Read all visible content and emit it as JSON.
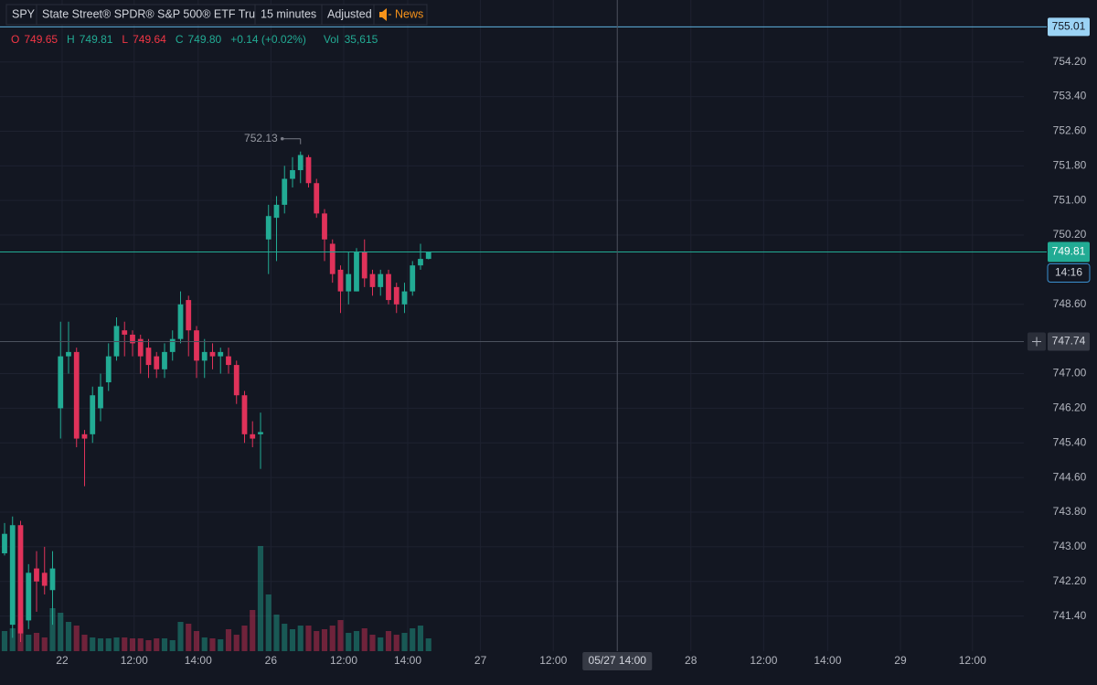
{
  "chart_data": {
    "type": "candlestick",
    "symbol": "SPY",
    "name": "State Street® SPDR® S&P 500® ETF Trust",
    "interval": "15 minutes",
    "adjustment": "Adjusted",
    "news": "News",
    "legend": [
      {
        "key": "O",
        "value": "749.65",
        "color": "#f23645"
      },
      {
        "key": "H",
        "value": "749.81",
        "color": "#22ab94"
      },
      {
        "key": "L",
        "value": "749.64",
        "color": "#f23645"
      },
      {
        "key": "C",
        "value": "749.80",
        "color": "#22ab94"
      },
      {
        "key": "+0.14 (+0.02%)",
        "value": "",
        "color": "#22ab94"
      }
    ],
    "volume_label": {
      "key": "Vol",
      "value": "35,615",
      "color": "#22ab94"
    },
    "up_color": "#22ab94",
    "down_color": "#e0325a",
    "open": [
      742.85,
      741.2,
      743.5,
      741.3,
      742.5,
      742.4,
      742.0,
      746.2,
      747.4,
      747.5,
      745.6,
      745.6,
      746.2,
      746.8,
      747.4,
      748.0,
      747.9,
      747.8,
      747.6,
      747.4,
      747.1,
      747.5,
      747.8,
      748.7,
      748.0,
      747.3,
      747.5,
      747.4,
      747.4,
      747.2,
      746.5,
      745.6,
      745.6,
      750.1,
      750.6,
      750.9,
      751.5,
      751.7,
      752.0,
      751.4,
      750.7,
      750.0,
      749.4,
      748.9,
      748.9,
      749.8,
      749.3,
      749.0,
      749.3,
      749.0,
      748.6,
      748.9,
      749.5,
      749.65
    ],
    "high": [
      743.55,
      743.7,
      743.6,
      742.6,
      742.9,
      743.0,
      742.9,
      748.2,
      748.2,
      747.6,
      745.7,
      746.7,
      747.0,
      747.7,
      748.3,
      748.2,
      748.0,
      747.9,
      747.8,
      747.5,
      747.7,
      748.0,
      748.9,
      748.8,
      748.1,
      747.8,
      747.7,
      747.6,
      747.6,
      747.3,
      746.6,
      745.9,
      746.1,
      750.9,
      751.1,
      751.8,
      752.0,
      752.13,
      752.05,
      751.5,
      750.8,
      750.1,
      749.5,
      749.8,
      749.9,
      750.1,
      749.4,
      749.4,
      749.4,
      749.1,
      749.1,
      749.6,
      750.0,
      749.81
    ],
    "low": [
      742.8,
      740.9,
      740.8,
      741.1,
      741.5,
      741.9,
      741.2,
      745.5,
      747.0,
      745.3,
      744.4,
      745.4,
      745.9,
      746.6,
      747.3,
      747.4,
      747.4,
      747.0,
      746.9,
      746.9,
      746.9,
      747.3,
      747.7,
      747.4,
      746.9,
      746.9,
      747.1,
      747.0,
      747.0,
      746.3,
      745.4,
      745.3,
      744.8,
      749.3,
      749.6,
      750.7,
      751.3,
      751.4,
      751.3,
      750.6,
      749.6,
      749.1,
      748.4,
      748.6,
      748.9,
      749.0,
      748.8,
      748.8,
      748.6,
      748.4,
      748.4,
      748.8,
      749.4,
      749.64
    ],
    "close": [
      743.3,
      743.5,
      741.0,
      742.4,
      742.2,
      742.1,
      742.5,
      747.4,
      747.5,
      745.5,
      745.5,
      746.5,
      746.7,
      747.4,
      748.1,
      747.9,
      747.7,
      747.4,
      747.2,
      747.1,
      747.5,
      747.8,
      748.6,
      748.0,
      747.3,
      747.5,
      747.4,
      747.5,
      747.2,
      746.5,
      745.6,
      745.5,
      745.65,
      750.64,
      750.9,
      751.5,
      751.7,
      752.05,
      751.4,
      750.7,
      750.1,
      749.3,
      748.9,
      749.3,
      749.8,
      749.2,
      749.0,
      749.3,
      748.7,
      748.6,
      748.9,
      749.5,
      749.65,
      749.8
    ],
    "volume": [
      55900,
      63500,
      76200,
      45700,
      50800,
      38100,
      119400,
      106700,
      81300,
      71100,
      45700,
      38100,
      35600,
      35600,
      38100,
      38100,
      35600,
      35600,
      30500,
      35600,
      35600,
      30500,
      81300,
      76200,
      55900,
      38100,
      35600,
      33000,
      61000,
      45700,
      71100,
      114300,
      292100,
      157500,
      101600,
      76200,
      61000,
      71100,
      71100,
      55900,
      61000,
      71100,
      86400,
      50800,
      55900,
      63500,
      45700,
      38100,
      55900,
      45700,
      50800,
      63500,
      71100,
      35615
    ],
    "xlim": [
      -0.57,
      127.43
    ],
    "ylim": [
      740.59,
      755.63
    ],
    "xticks": [
      {
        "value": 7.2,
        "label": "22"
      },
      {
        "value": 16.2,
        "label": "12:00"
      },
      {
        "value": 24.2,
        "label": "14:00"
      },
      {
        "value": 33.3,
        "label": "26"
      },
      {
        "value": 42.4,
        "label": "12:00"
      },
      {
        "value": 50.4,
        "label": "14:00"
      },
      {
        "value": 59.5,
        "label": "27"
      },
      {
        "value": 68.6,
        "label": "12:00"
      },
      {
        "value": 85.8,
        "label": "28"
      },
      {
        "value": 94.9,
        "label": "12:00"
      },
      {
        "value": 102.9,
        "label": "14:00"
      },
      {
        "value": 112,
        "label": "29"
      },
      {
        "value": 121,
        "label": "12:00"
      }
    ],
    "yticks": [
      {
        "value": 741.4,
        "label": "741.40"
      },
      {
        "value": 742.2,
        "label": "742.20"
      },
      {
        "value": 743,
        "label": "743.00"
      },
      {
        "value": 743.8,
        "label": "743.80"
      },
      {
        "value": 744.6,
        "label": "744.60"
      },
      {
        "value": 745.4,
        "label": "745.40"
      },
      {
        "value": 746.2,
        "label": "746.20"
      },
      {
        "value": 747,
        "label": "747.00"
      },
      {
        "value": 748.6,
        "label": "748.60"
      },
      {
        "value": 750.2,
        "label": "750.20"
      },
      {
        "value": 751,
        "label": "751.00"
      },
      {
        "value": 751.8,
        "label": "751.80"
      },
      {
        "value": 752.6,
        "label": "752.60"
      },
      {
        "value": 753.4,
        "label": "753.40"
      },
      {
        "value": 754.2,
        "label": "754.20"
      }
    ],
    "grid": true,
    "alert_line": 755.01,
    "last_price": {
      "value": 749.81,
      "countdown": "14:16"
    },
    "crosshair": {
      "x": 76.6,
      "x_label": "05/27 14:00",
      "y": 747.74
    }
  }
}
